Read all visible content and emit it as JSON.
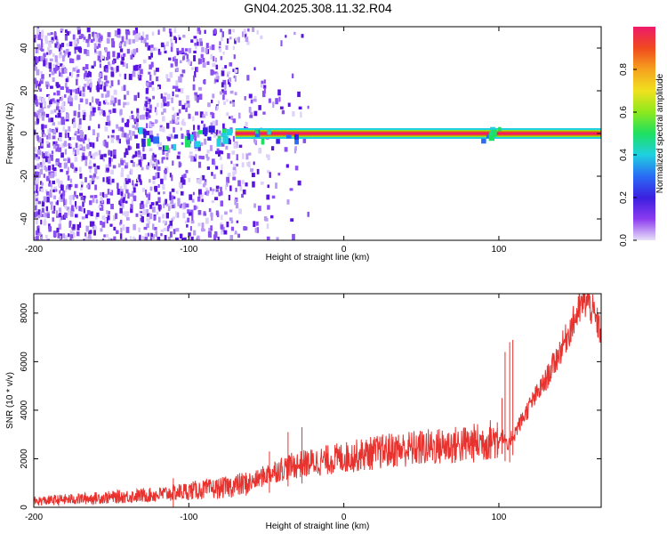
{
  "title": "GN04.2025.308.11.32.R04",
  "colors": {
    "signal_line": "#e8322e",
    "noise_dots": "#6a1ee6",
    "background": "#ffffff"
  },
  "chart_data": [
    {
      "type": "heatmap",
      "title": "GN04.2025.308.11.32.R04",
      "xlabel": "Height of straight line (km)",
      "ylabel": "Frequency (Hz)",
      "xlim": [
        -200,
        166
      ],
      "ylim": [
        -50,
        50
      ],
      "xticks": [
        -200,
        -100,
        0,
        100
      ],
      "yticks": [
        -40,
        -20,
        0,
        20,
        40
      ],
      "colorbar": {
        "label": "Normalized spectral amplitude",
        "range": [
          0.0,
          1.0
        ],
        "ticks": [
          0.0,
          0.2,
          0.4,
          0.6,
          0.8
        ],
        "colormap": [
          "#e8e0f8",
          "#8b3cf0",
          "#3b1fe0",
          "#2a6cf5",
          "#1fd0e0",
          "#1ee060",
          "#8de81e",
          "#f0e21e",
          "#f5a21e",
          "#f04a1e",
          "#ee1a6a"
        ]
      },
      "features": {
        "strong_line_start_km": -70,
        "strong_line_end_km": 166,
        "strong_line_frequency_hz": 0,
        "noise_region_end_km": -70
      },
      "grid": false
    },
    {
      "type": "line",
      "xlabel": "Height of straight line (km)",
      "ylabel": "SNR (10 * v/v)",
      "xlim": [
        -200,
        166
      ],
      "ylim": [
        0,
        8800
      ],
      "xticks": [
        -200,
        -100,
        0,
        100
      ],
      "yticks": [
        0,
        2000,
        4000,
        6000,
        8000
      ],
      "series": [
        {
          "x": [
            -200,
            -180,
            -160,
            -140,
            -120,
            -110,
            -100,
            -80,
            -70,
            -60,
            -50,
            -40,
            -30,
            -20,
            -10,
            0,
            10,
            20,
            30,
            40,
            50,
            60,
            70,
            80,
            90,
            95,
            100,
            102,
            104,
            106,
            108,
            110,
            112,
            114,
            120,
            130,
            140,
            150,
            155,
            158,
            162,
            166
          ],
          "values": [
            250,
            320,
            380,
            450,
            520,
            600,
            680,
            780,
            900,
            1000,
            1350,
            1600,
            1750,
            1850,
            1950,
            2050,
            2150,
            2250,
            2350,
            2400,
            2450,
            2500,
            2550,
            2600,
            2700,
            2800,
            2850,
            3000,
            2700,
            2400,
            2900,
            3000,
            3300,
            3500,
            4200,
            5200,
            6500,
            7900,
            8500,
            8450,
            7800,
            7200
          ],
          "spikes": [
            {
              "x": -110,
              "y": 1200
            },
            {
              "x": -48,
              "y": 2300
            },
            {
              "x": -36,
              "y": 3100
            },
            {
              "x": -27,
              "y": 3300
            },
            {
              "x": 99,
              "y": 3500
            },
            {
              "x": 102,
              "y": 4500
            },
            {
              "x": 104,
              "y": 6400
            },
            {
              "x": 107,
              "y": 6800
            },
            {
              "x": 109,
              "y": 6900
            }
          ]
        }
      ],
      "grid": false
    }
  ]
}
